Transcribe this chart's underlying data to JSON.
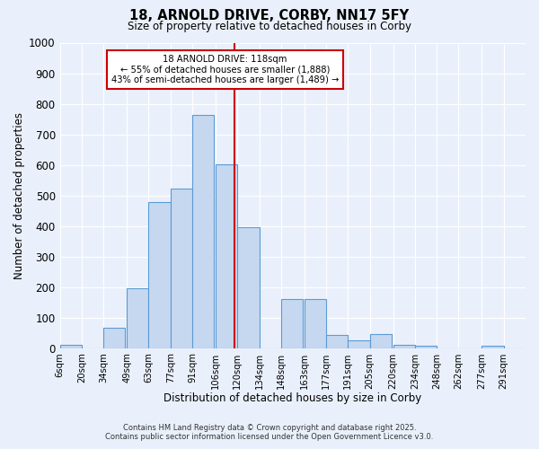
{
  "title": "18, ARNOLD DRIVE, CORBY, NN17 5FY",
  "subtitle": "Size of property relative to detached houses in Corby",
  "xlabel": "Distribution of detached houses by size in Corby",
  "ylabel": "Number of detached properties",
  "bar_labels": [
    "6sqm",
    "20sqm",
    "34sqm",
    "49sqm",
    "63sqm",
    "77sqm",
    "91sqm",
    "106sqm",
    "120sqm",
    "134sqm",
    "148sqm",
    "163sqm",
    "177sqm",
    "191sqm",
    "205sqm",
    "220sqm",
    "234sqm",
    "248sqm",
    "262sqm",
    "277sqm",
    "291sqm"
  ],
  "bar_values": [
    12,
    0,
    65,
    197,
    477,
    521,
    762,
    601,
    397,
    0,
    160,
    160,
    42,
    25,
    45,
    10,
    7,
    0,
    0,
    8,
    0
  ],
  "bar_color": "#c5d8f0",
  "bar_edge_color": "#5b9bd5",
  "property_line_x": 118,
  "property_line_color": "#cc0000",
  "annotation_text": "18 ARNOLD DRIVE: 118sqm\n← 55% of detached houses are smaller (1,888)\n43% of semi-detached houses are larger (1,489) →",
  "annotation_box_color": "#ffffff",
  "annotation_box_edge_color": "#cc0000",
  "ylim": [
    0,
    1000
  ],
  "yticks": [
    0,
    100,
    200,
    300,
    400,
    500,
    600,
    700,
    800,
    900,
    1000
  ],
  "footer_line1": "Contains HM Land Registry data © Crown copyright and database right 2025.",
  "footer_line2": "Contains public sector information licensed under the Open Government Licence v3.0.",
  "bg_color": "#eaf0fb",
  "plot_bg_color": "#eaf0fb",
  "grid_color": "#ffffff",
  "bin_starts": [
    6,
    20,
    34,
    49,
    63,
    77,
    91,
    106,
    120,
    134,
    148,
    163,
    177,
    191,
    205,
    220,
    234,
    248,
    262,
    277,
    291
  ],
  "bin_width": 14
}
